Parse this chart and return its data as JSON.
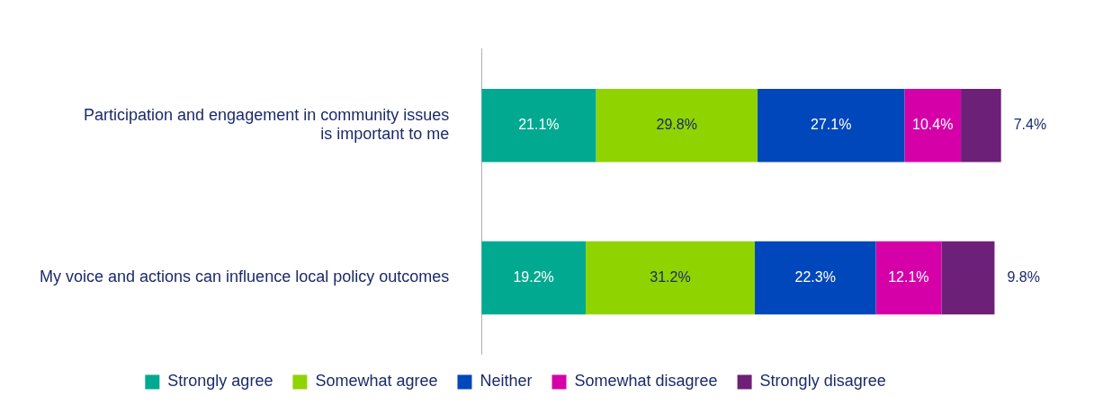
{
  "chart_data": {
    "type": "bar",
    "orientation": "horizontal",
    "stacked": true,
    "grid": false,
    "legend": "bottom",
    "categories": [
      "Participation and engagement in community issues\nis important to me",
      "My voice and actions can influence local policy outcomes"
    ],
    "series": [
      {
        "name": "Strongly agree",
        "color": "#00a98f",
        "values": [
          21.1,
          19.2
        ],
        "value_labels": [
          "21.1%",
          "19.2%"
        ]
      },
      {
        "name": "Somewhat agree",
        "color": "#8fd400",
        "values": [
          29.8,
          31.2
        ],
        "value_labels": [
          "29.8%",
          "31.2%"
        ]
      },
      {
        "name": "Neither",
        "color": "#0047bb",
        "values": [
          27.1,
          22.3
        ],
        "value_labels": [
          "27.1%",
          "22.3%"
        ]
      },
      {
        "name": "Somewhat disagree",
        "color": "#d600a9",
        "values": [
          10.4,
          12.1
        ],
        "value_labels": [
          "10.4%",
          "12.1%"
        ]
      },
      {
        "name": "Strongly disagree",
        "color": "#6d2077",
        "values": [
          7.4,
          9.8
        ],
        "value_labels": [
          "7.4%",
          "9.8%"
        ]
      }
    ]
  }
}
